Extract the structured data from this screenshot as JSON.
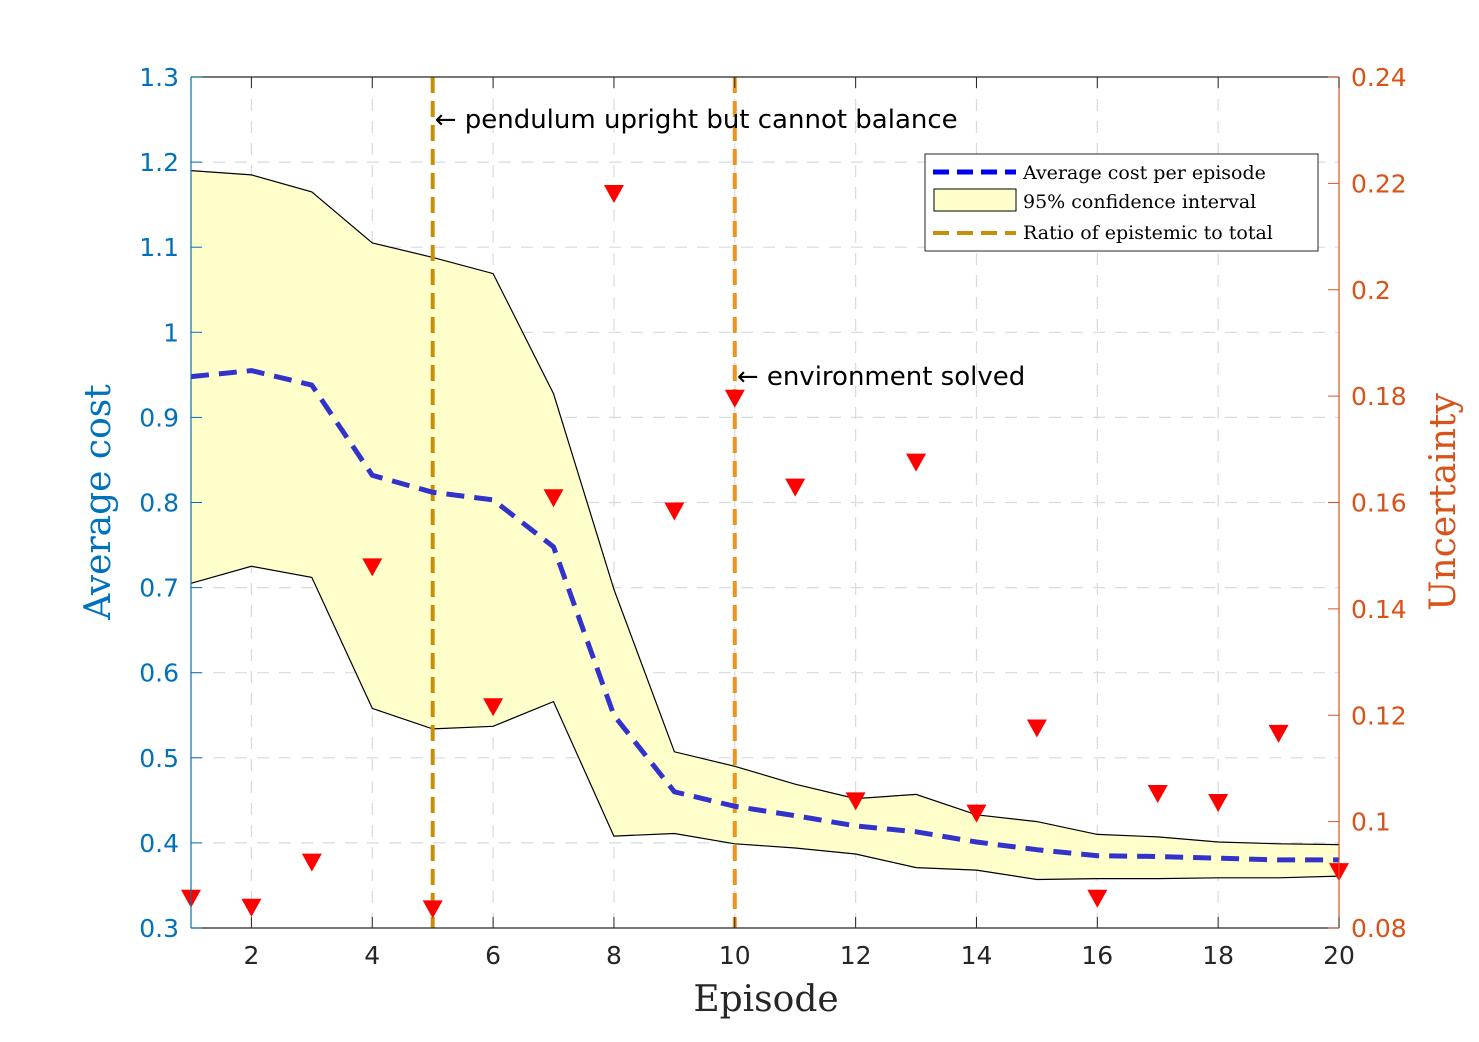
{
  "chart_data": {
    "type": "line",
    "x": [
      1,
      2,
      3,
      4,
      5,
      6,
      7,
      8,
      9,
      10,
      11,
      12,
      13,
      14,
      15,
      16,
      17,
      18,
      19,
      20
    ],
    "x_ticks": [
      2,
      4,
      6,
      8,
      10,
      12,
      14,
      16,
      18,
      20
    ],
    "xlim": [
      1,
      20
    ],
    "xlabel": "Episode",
    "left_axis": {
      "label": "Average cost",
      "ylim": [
        0.3,
        1.3
      ],
      "ticks": [
        0.3,
        0.4,
        0.5,
        0.6,
        0.7,
        0.8,
        0.9,
        1,
        1.1,
        1.2,
        1.3
      ],
      "color": "#0072BD"
    },
    "right_axis": {
      "label": "Uncertainty",
      "ylim": [
        0.08,
        0.24
      ],
      "ticks": [
        0.08,
        0.1,
        0.12,
        0.14,
        0.16,
        0.18,
        0.2,
        0.22,
        0.24
      ],
      "color": "#D95319"
    },
    "series": [
      {
        "name": "Average cost per episode",
        "axis": "left",
        "style": "dashed",
        "color": "#3333cc",
        "values": [
          0.948,
          0.955,
          0.938,
          0.832,
          0.812,
          0.803,
          0.748,
          0.55,
          0.46,
          0.443,
          0.432,
          0.42,
          0.413,
          0.401,
          0.392,
          0.385,
          0.384,
          0.382,
          0.38,
          0.38
        ]
      },
      {
        "name": "95% confidence interval",
        "axis": "left",
        "type": "band",
        "fill": "#ffffcc",
        "upper": [
          1.19,
          1.185,
          1.165,
          1.105,
          1.088,
          1.069,
          0.928,
          0.698,
          0.507,
          0.49,
          0.469,
          0.452,
          0.457,
          0.433,
          0.425,
          0.41,
          0.407,
          0.401,
          0.399,
          0.398
        ],
        "lower": [
          0.705,
          0.725,
          0.712,
          0.558,
          0.534,
          0.537,
          0.566,
          0.408,
          0.411,
          0.399,
          0.394,
          0.387,
          0.371,
          0.368,
          0.357,
          0.358,
          0.358,
          0.359,
          0.359,
          0.361
        ]
      },
      {
        "name": "Ratio of epistemic to total",
        "axis": "right",
        "type": "scatter",
        "marker": "triangle-down",
        "color": "#ff0000",
        "values": [
          0.0855,
          0.0838,
          0.0923,
          0.1478,
          0.0835,
          0.1215,
          0.1608,
          0.218,
          0.1583,
          0.1795,
          0.1628,
          0.1038,
          0.1675,
          0.1015,
          0.1175,
          0.0855,
          0.1052,
          0.1035,
          0.1165,
          0.0905
        ]
      }
    ],
    "vlines": [
      {
        "x": 5,
        "color": "#c8900a",
        "label": "← pendulum upright but cannot balance"
      },
      {
        "x": 10,
        "color": "#f29318",
        "label": "← environment solved"
      }
    ],
    "legend": {
      "position": "top-right",
      "entries": [
        "Average cost per episode",
        "95% confidence interval",
        "Ratio of epistemic to total"
      ]
    },
    "grid": true
  }
}
